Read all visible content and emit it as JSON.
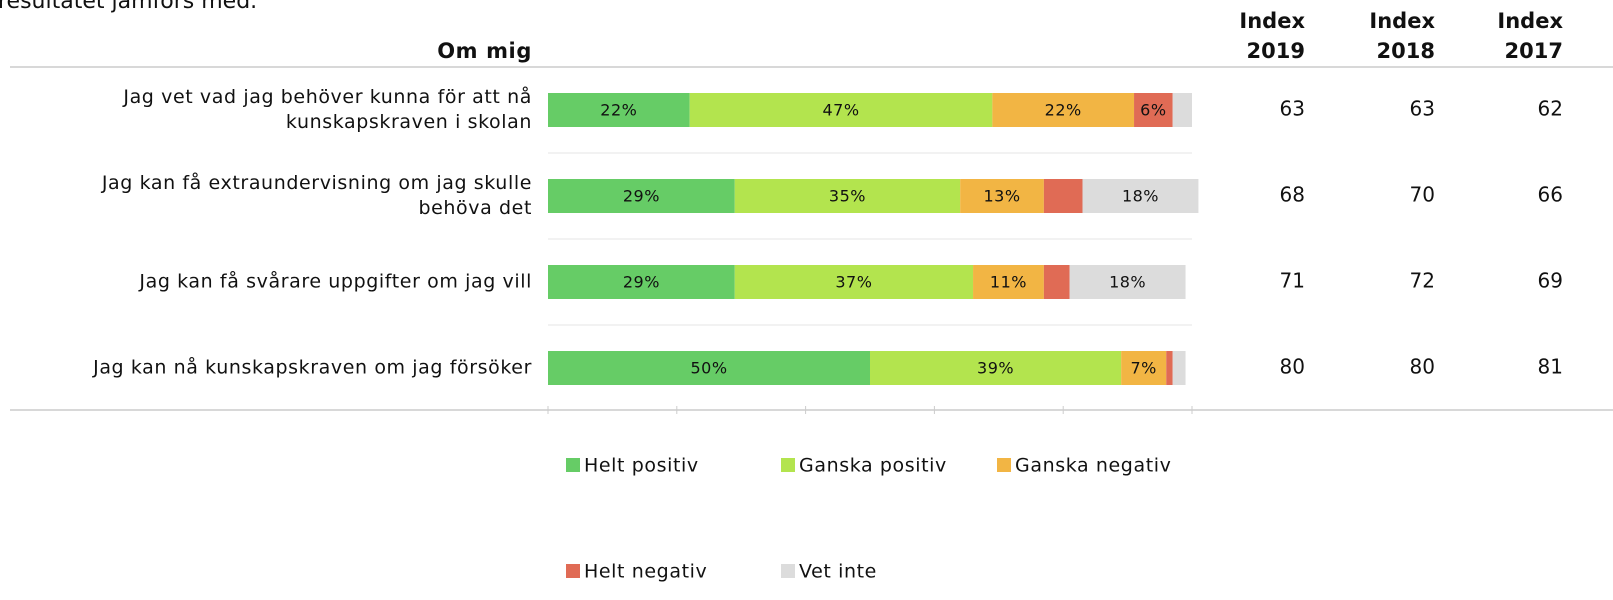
{
  "chart_data": {
    "type": "bar",
    "orientation": "horizontal",
    "stacked": true,
    "note": "resultatet jämförs med.",
    "category_header": "Om mig",
    "categories": [
      "Jag vet vad jag behöver kunna för att nå kunskapskraven i skolan",
      "Jag kan få extraundervisning om jag skulle behöva det",
      "Jag kan få svårare uppgifter om jag vill",
      "Jag kan nå kunskapskraven om jag försöker"
    ],
    "series": [
      {
        "name": "Helt positiv",
        "color": "#66cc66",
        "values": [
          22,
          29,
          29,
          50
        ],
        "value_labels": [
          "22%",
          "29%",
          "29%",
          "50%"
        ]
      },
      {
        "name": "Ganska positiv",
        "color": "#b3e44e",
        "values": [
          47,
          35,
          37,
          39
        ],
        "value_labels": [
          "47%",
          "35%",
          "37%",
          "39%"
        ]
      },
      {
        "name": "Ganska negativ",
        "color": "#f2b544",
        "values": [
          22,
          13,
          11,
          7
        ],
        "value_labels": [
          "22%",
          "13%",
          "11%",
          "7%"
        ]
      },
      {
        "name": "Helt negativ",
        "color": "#e06b55",
        "values": [
          6,
          6,
          4,
          1
        ],
        "value_labels": [
          "6%",
          null,
          null,
          null
        ]
      },
      {
        "name": "Vet inte",
        "color": "#dcdcdc",
        "values": [
          3,
          18,
          18,
          2
        ],
        "value_labels": [
          null,
          "18%",
          "18%",
          null
        ]
      }
    ],
    "xlim": [
      0,
      100
    ],
    "xticks": [
      0,
      20,
      40,
      60,
      80,
      100
    ],
    "index_columns": [
      {
        "header": [
          "Index",
          "2019"
        ],
        "values": [
          63,
          68,
          71,
          80
        ]
      },
      {
        "header": [
          "Index",
          "2018"
        ],
        "values": [
          63,
          70,
          72,
          80
        ]
      },
      {
        "header": [
          "Index",
          "2017"
        ],
        "values": [
          62,
          66,
          69,
          81
        ]
      }
    ]
  }
}
